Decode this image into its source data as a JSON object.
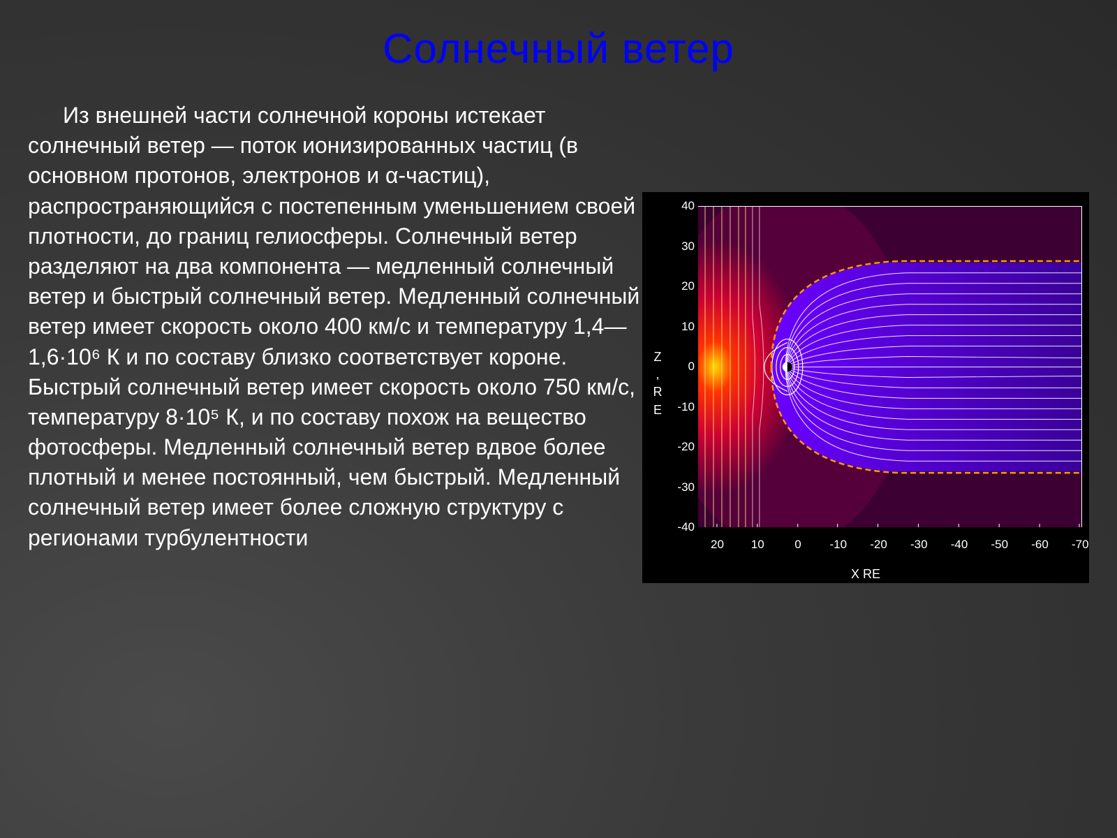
{
  "title": "Солнечный ветер",
  "title_color": "#0000ff",
  "body_text": "Из внешней части солнечной короны истекает солнечный ветер — поток ионизированных частиц (в основном протонов, электронов и α-частиц), распространяющийся с постепенным уменьшением своей плотности, до границ гелиосферы. Солнечный ветер разделяют на два компонента — медленный солнечный ветер и быстрый солнечный ветер. Медленный солнечный ветер имеет скорость около 400 км/с и температуру 1,4—1,6·10⁶ К и по составу близко соответствует короне. Быстрый солнечный ветер имеет скорость около 750 км/с, температуру 8·10⁵ К, и по составу похож на вещество фотосферы. Медленный солнечный ветер вдвое более плотный и менее постоянный, чем быстрый. Медленный солнечный ветер имеет более сложную структуру с регионами турбулентности",
  "chart": {
    "type": "scientific-plot",
    "background_color": "#000000",
    "y_label": "Z , R E",
    "x_label": "X RE",
    "y_ticks": [
      {
        "v": 40,
        "pos": 0.0
      },
      {
        "v": 30,
        "pos": 0.125
      },
      {
        "v": 20,
        "pos": 0.25
      },
      {
        "v": 10,
        "pos": 0.375
      },
      {
        "v": 0,
        "pos": 0.5
      },
      {
        "v": -10,
        "pos": 0.625
      },
      {
        "v": -20,
        "pos": 0.75
      },
      {
        "v": -30,
        "pos": 0.875
      },
      {
        "v": -40,
        "pos": 1.0
      }
    ],
    "x_ticks": [
      {
        "v": 20,
        "pos": 0.05
      },
      {
        "v": 10,
        "pos": 0.155
      },
      {
        "v": 0,
        "pos": 0.26
      },
      {
        "v": -10,
        "pos": 0.365
      },
      {
        "v": -20,
        "pos": 0.47
      },
      {
        "v": -30,
        "pos": 0.575
      },
      {
        "v": -40,
        "pos": 0.68
      },
      {
        "v": -50,
        "pos": 0.785
      },
      {
        "v": -60,
        "pos": 0.89
      },
      {
        "v": -70,
        "pos": 0.995
      }
    ],
    "xlim": [
      25,
      -75
    ],
    "ylim": [
      -40,
      40
    ],
    "colors": {
      "field_lines": "#ffffff",
      "magnetopause": "#ff9900",
      "bow_shock_hot": "#ff0000",
      "background_warm": "#8b0055",
      "magnetosphere_fill": "#4a00d4",
      "tick_color": "#ffffff",
      "axis_color": "#ffffff"
    },
    "line_width_field": 1,
    "line_width_boundary": 2,
    "magnetopause_dash": "6 4"
  }
}
